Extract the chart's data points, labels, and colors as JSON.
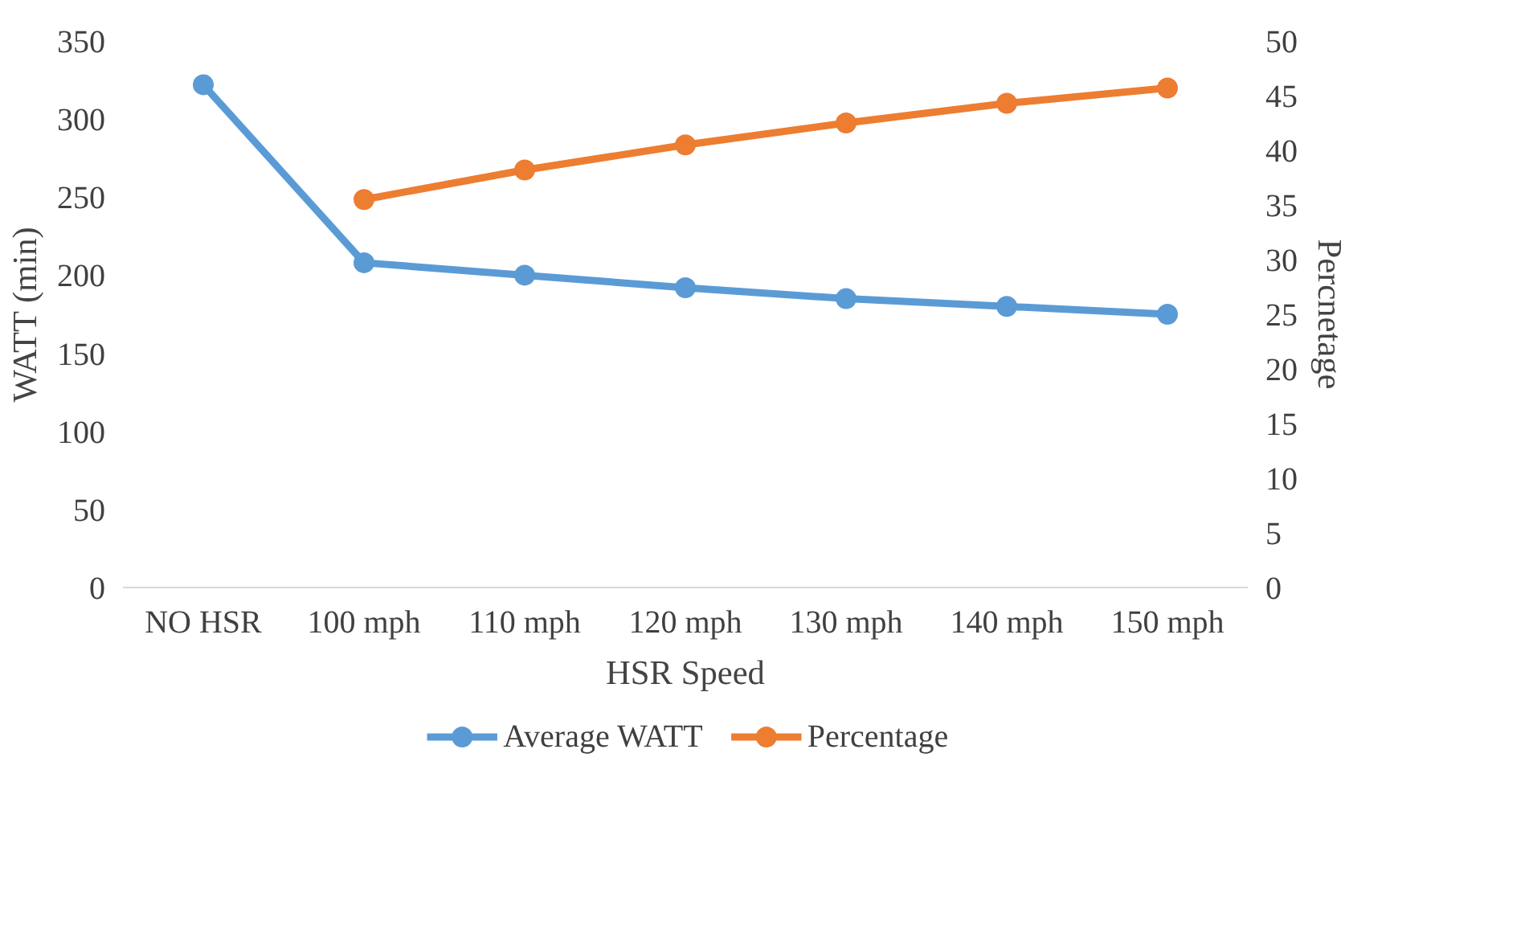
{
  "chart_data": {
    "type": "line",
    "xlabel": "HSR Speed",
    "ylabel": "WATT (min)",
    "y2label": "Percnetage",
    "categories": [
      "NO HSR",
      "100 mph",
      "110 mph",
      "120 mph",
      "130 mph",
      "140 mph",
      "150 mph"
    ],
    "series": [
      {
        "name": "Average WATT",
        "color": "#5b9bd5",
        "values": [
          322,
          208,
          200,
          192,
          185,
          180,
          175
        ]
      },
      {
        "name": "Percentage",
        "color": "#ed7d31",
        "axis": "y2",
        "values": [
          null,
          35.5,
          38.2,
          40.5,
          42.5,
          44.3,
          45.7
        ]
      }
    ],
    "ylim": [
      0,
      350
    ],
    "yticks": [
      0,
      50,
      100,
      150,
      200,
      250,
      300,
      350
    ],
    "y2lim": [
      0,
      50
    ],
    "y2ticks": [
      0,
      5,
      10,
      15,
      20,
      25,
      30,
      35,
      40,
      45,
      50
    ],
    "grid": false,
    "legend": "bottom",
    "marker": "circle",
    "line_style": "solid"
  }
}
